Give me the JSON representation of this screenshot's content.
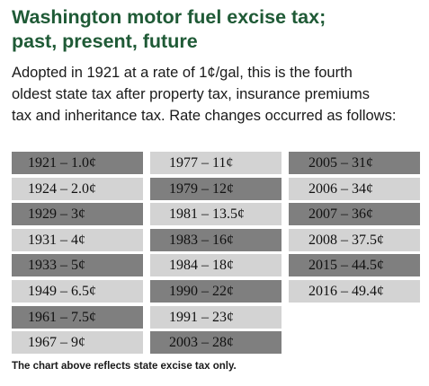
{
  "title": {
    "line1": "Washington motor fuel excise tax;",
    "line2": "past, present, future"
  },
  "intro": {
    "line1": "Adopted in 1921 at a rate of 1¢/gal, this is the fourth",
    "line2": "oldest state tax after property tax, insurance premiums",
    "line3": "tax and inheritance tax. Rate changes occurred as follows:"
  },
  "colors": {
    "title": "#1f5a36",
    "cell_dark": "#7f7f7f",
    "cell_light": "#d3d3d3"
  },
  "rates": {
    "columns": [
      [
        {
          "text": "1921 – 1.0¢",
          "shade": "dark"
        },
        {
          "text": "1924 – 2.0¢",
          "shade": "light"
        },
        {
          "text": "1929 – 3¢",
          "shade": "dark"
        },
        {
          "text": "1931 – 4¢",
          "shade": "light"
        },
        {
          "text": "1933 – 5¢",
          "shade": "dark"
        },
        {
          "text": "1949 – 6.5¢",
          "shade": "light"
        },
        {
          "text": "1961 – 7.5¢",
          "shade": "dark"
        },
        {
          "text": "1967 – 9¢",
          "shade": "light"
        }
      ],
      [
        {
          "text": "1977 – 11¢",
          "shade": "light"
        },
        {
          "text": "1979 – 12¢",
          "shade": "dark"
        },
        {
          "text": "1981 – 13.5¢",
          "shade": "light"
        },
        {
          "text": "1983 – 16¢",
          "shade": "dark"
        },
        {
          "text": "1984 – 18¢",
          "shade": "light"
        },
        {
          "text": "1990 – 22¢",
          "shade": "dark"
        },
        {
          "text": "1991 – 23¢",
          "shade": "light"
        },
        {
          "text": "2003 – 28¢",
          "shade": "dark"
        }
      ],
      [
        {
          "text": "2005 – 31¢",
          "shade": "dark"
        },
        {
          "text": "2006 – 34¢",
          "shade": "light"
        },
        {
          "text": "2007 – 36¢",
          "shade": "dark"
        },
        {
          "text": "2008 – 37.5¢",
          "shade": "light"
        },
        {
          "text": "2015 – 44.5¢",
          "shade": "dark"
        },
        {
          "text": "2016 – 49.4¢",
          "shade": "light"
        }
      ]
    ]
  },
  "footnote": "The chart above reflects state excise tax only."
}
